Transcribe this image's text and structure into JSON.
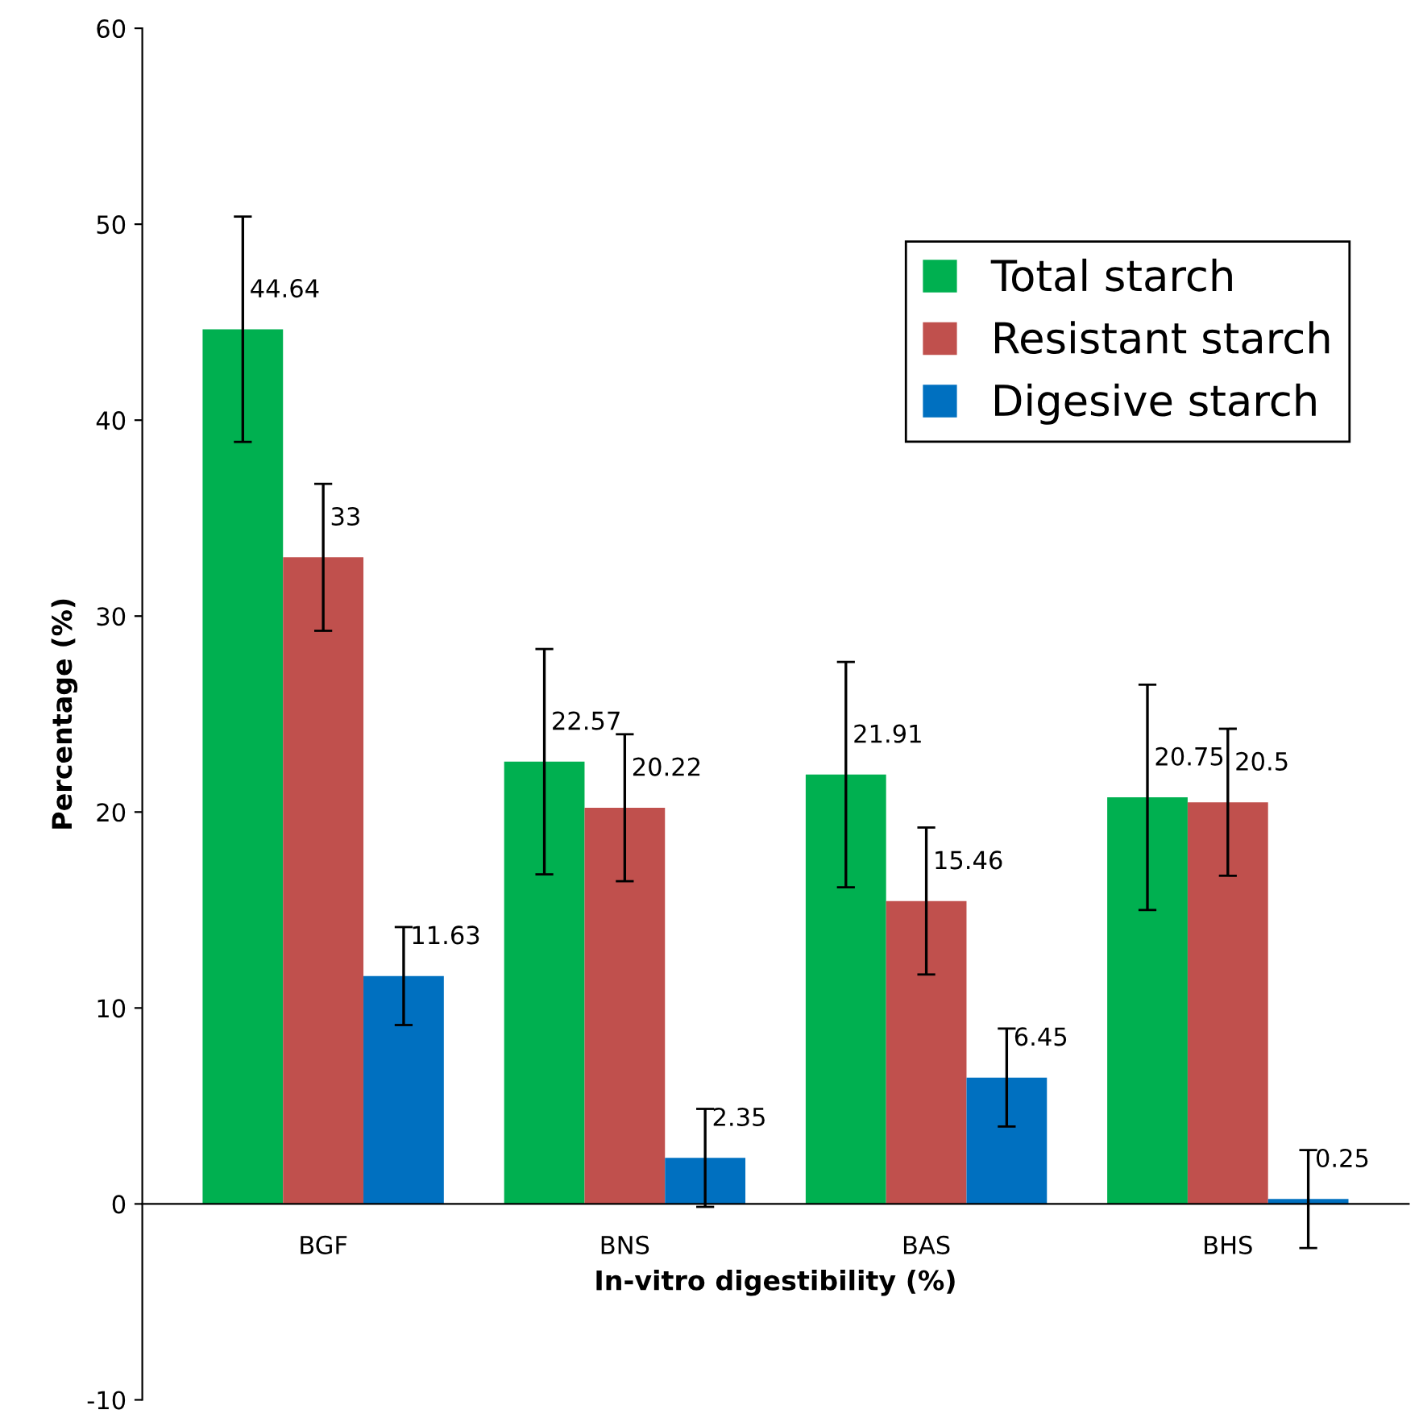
{
  "chart_data": {
    "type": "bar",
    "xlabel": "In-vitro digestibility (%)",
    "ylabel": "Percentage (%)",
    "categories": [
      "BGF",
      "BNS",
      "BAS",
      "BHS"
    ],
    "series": [
      {
        "name": "Total starch",
        "color": "#00b050",
        "values": [
          44.64,
          22.57,
          21.91,
          20.75
        ],
        "errors": [
          5.75,
          5.75,
          5.75,
          5.75
        ]
      },
      {
        "name": "Resistant starch",
        "color": "#c0504d",
        "values": [
          33,
          20.22,
          15.46,
          20.5
        ],
        "errors": [
          3.75,
          3.75,
          3.75,
          3.75
        ]
      },
      {
        "name": "Digesive starch",
        "color": "#0070c0",
        "values": [
          11.63,
          2.35,
          6.45,
          0.25
        ],
        "errors": [
          2.5,
          2.5,
          2.5,
          2.5
        ]
      }
    ],
    "ylim": [
      -10,
      60
    ],
    "yticks": [
      -10,
      0,
      10,
      20,
      30,
      40,
      50,
      60
    ],
    "data_labels": true,
    "legend": "top right",
    "grid": false
  }
}
